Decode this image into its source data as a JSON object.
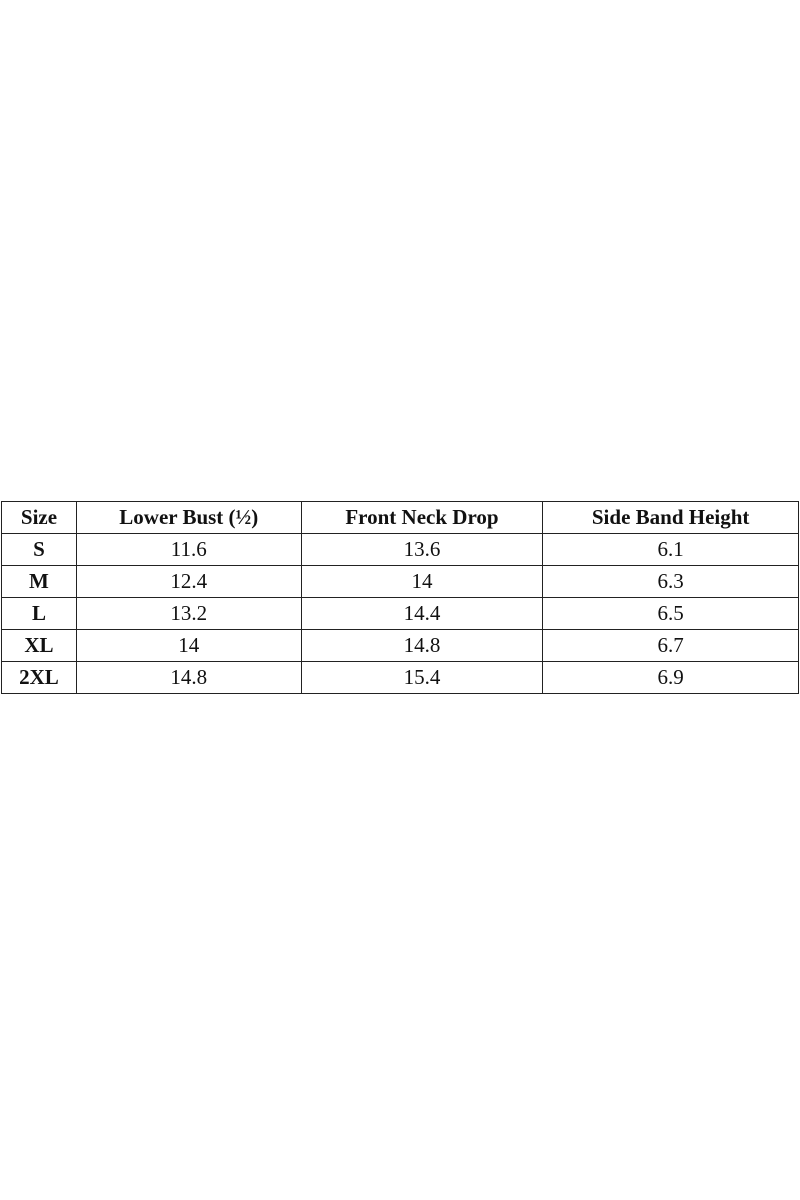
{
  "size_chart": {
    "headers": [
      "Size",
      "Lower Bust (½)",
      "Front Neck Drop",
      "Side Band Height"
    ],
    "rows": [
      [
        "S",
        "11.6",
        "13.6",
        "6.1"
      ],
      [
        "M",
        "12.4",
        "14",
        "6.3"
      ],
      [
        "L",
        "13.2",
        "14.4",
        "6.5"
      ],
      [
        "XL",
        "14",
        "14.8",
        "6.7"
      ],
      [
        "2XL",
        "14.8",
        "15.4",
        "6.9"
      ]
    ]
  }
}
